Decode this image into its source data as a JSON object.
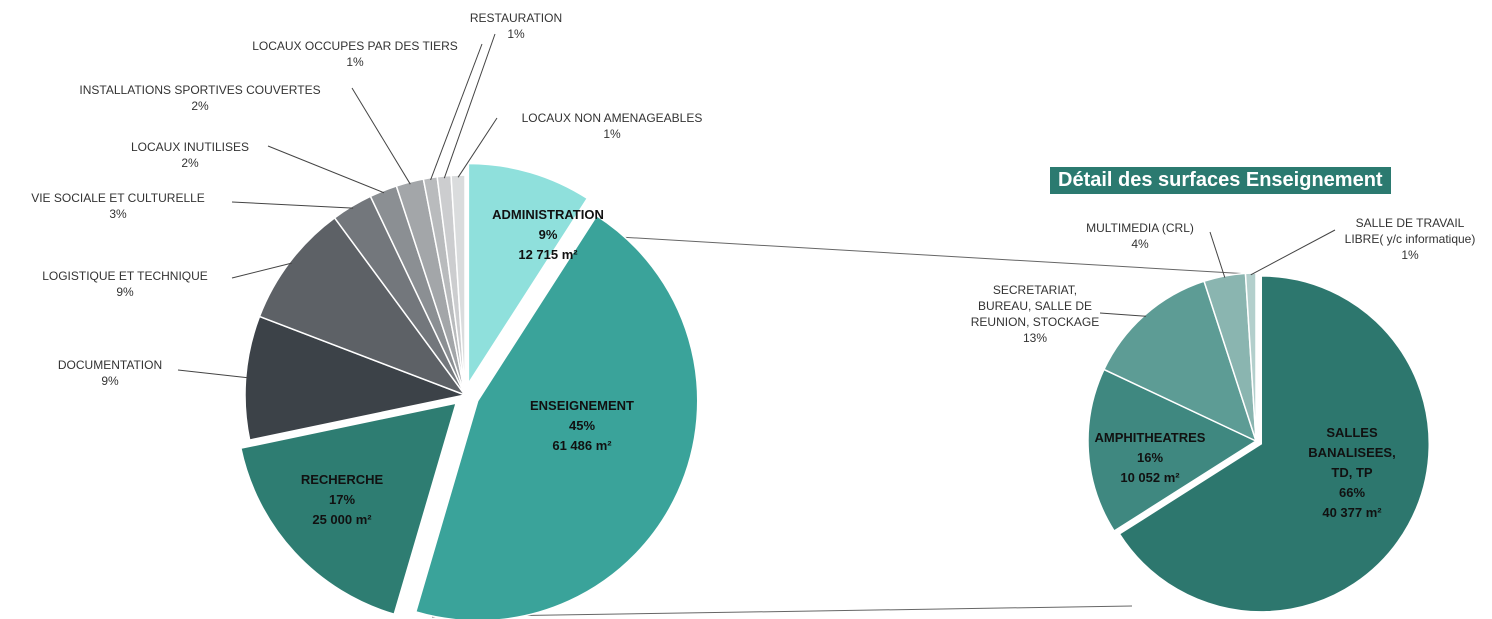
{
  "chart_data": [
    {
      "type": "pie",
      "categories": [
        "ADMINISTRATION",
        "ENSEIGNEMENT",
        "RECHERCHE",
        "DOCUMENTATION",
        "LOGISTIQUE ET TECHNIQUE",
        "VIE SOCIALE ET CULTURELLE",
        "LOCAUX INUTILISES",
        "INSTALLATIONS SPORTIVES COUVERTES",
        "LOCAUX OCCUPES PAR DES TIERS",
        "RESTAURATION",
        "LOCAUX NON AMENAGEABLES"
      ],
      "values": [
        9,
        45,
        17,
        9,
        9,
        3,
        2,
        2,
        1,
        1,
        1
      ],
      "value_labels": [
        "9%",
        "45%",
        "17%",
        "9%",
        "9%",
        "3%",
        "2%",
        "2%",
        "1%",
        "1%",
        "1%"
      ],
      "area_labels": [
        "12 715 m²",
        "61 486 m²",
        "25 000 m²",
        null,
        null,
        null,
        null,
        null,
        null,
        null,
        null
      ],
      "colors": [
        "#8fe0dc",
        "#3aa39a",
        "#2e7d72",
        "#3c4248",
        "#5d6166",
        "#73777c",
        "#8b8f93",
        "#a3a6a9",
        "#b9bbbd",
        "#cccdcf",
        "#dadcdd"
      ]
    },
    {
      "type": "pie",
      "title": "Détail des surfaces Enseignement",
      "categories": [
        "SALLES BANALISEES, TD, TP",
        "AMPHITHEATRES",
        "SECRETARIAT, BUREAU, SALLE DE REUNION, STOCKAGE",
        "MULTIMEDIA (CRL)",
        "SALLE DE TRAVAIL LIBRE( y/c informatique)"
      ],
      "values": [
        66,
        16,
        13,
        4,
        1
      ],
      "value_labels": [
        "66%",
        "16%",
        "13%",
        "4%",
        "1%"
      ],
      "area_labels": [
        "40 377 m²",
        "10 052 m²",
        null,
        null,
        null
      ],
      "colors": [
        "#2d776e",
        "#3f8880",
        "#5d9c95",
        "#8ab5b0",
        "#b3cfcc"
      ]
    }
  ]
}
